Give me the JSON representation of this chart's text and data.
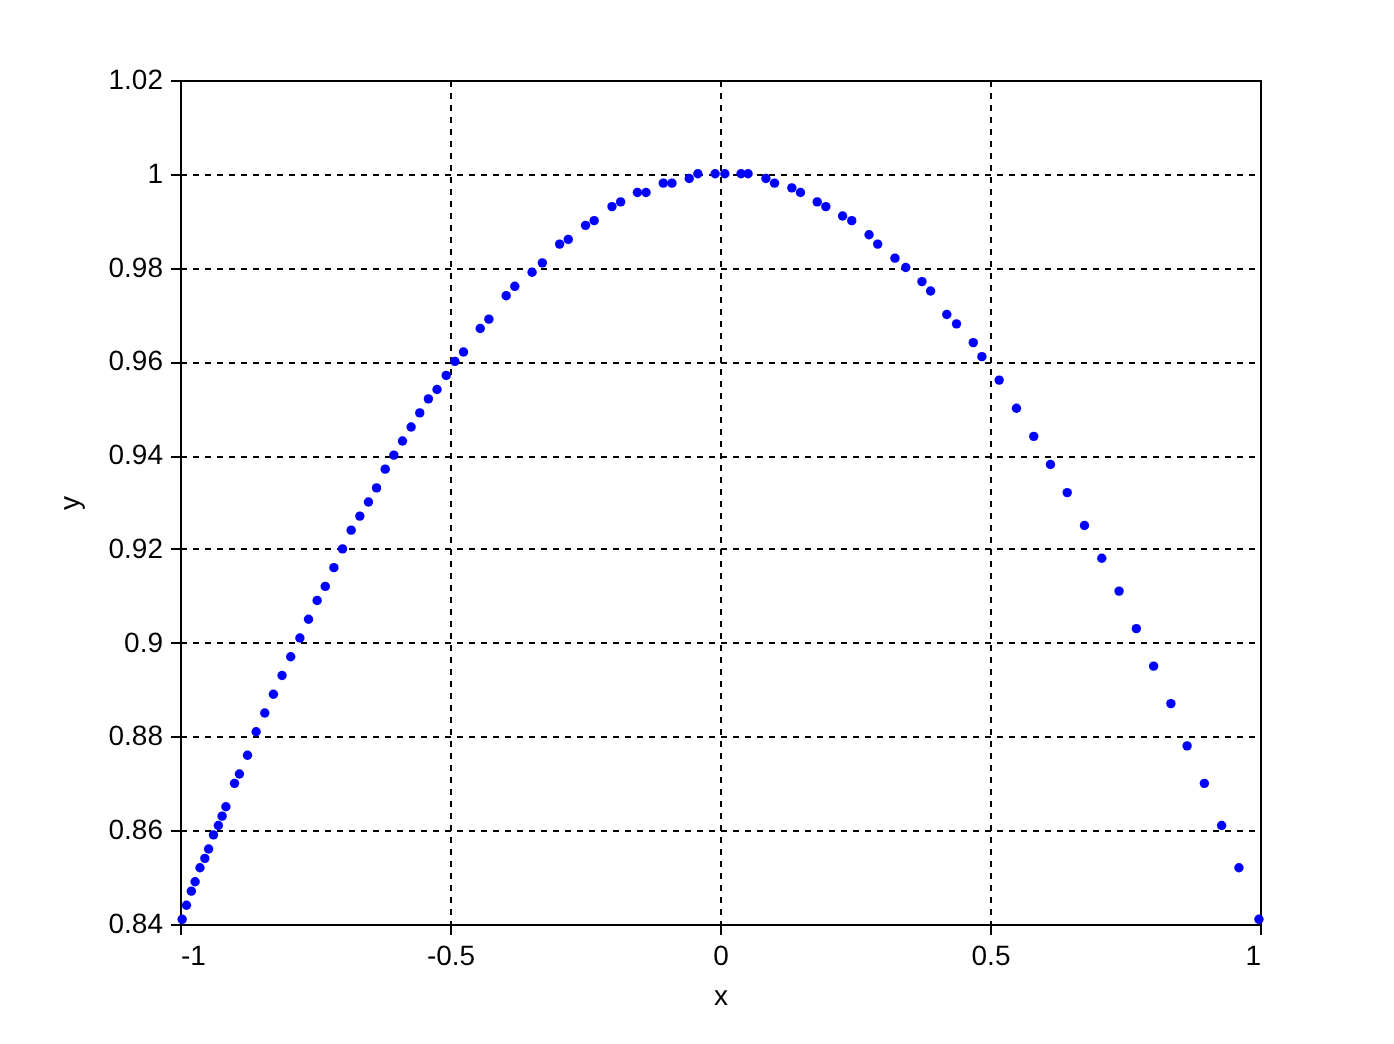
{
  "chart_data": {
    "type": "scatter",
    "xlabel": "x",
    "ylabel": "y",
    "xlim": [
      -1,
      1
    ],
    "ylim": [
      0.84,
      1.02
    ],
    "xticks": [
      -1,
      -0.5,
      0,
      0.5,
      1
    ],
    "yticks": [
      0.84,
      0.86,
      0.88,
      0.9,
      0.92,
      0.94,
      0.96,
      0.98,
      1,
      1.02
    ],
    "grid": true,
    "marker": "circle",
    "series": [
      {
        "color": "#0000ff",
        "x": [
          -0.996,
          -0.988,
          -0.979,
          -0.972,
          -0.963,
          -0.954,
          -0.947,
          -0.938,
          -0.929,
          -0.922,
          -0.915,
          -0.899,
          -0.89,
          -0.875,
          -0.859,
          -0.843,
          -0.827,
          -0.811,
          -0.795,
          -0.778,
          -0.762,
          -0.746,
          -0.731,
          -0.715,
          -0.699,
          -0.683,
          -0.667,
          -0.651,
          -0.636,
          -0.62,
          -0.604,
          -0.588,
          -0.572,
          -0.556,
          -0.54,
          -0.524,
          -0.507,
          -0.491,
          -0.475,
          -0.444,
          -0.428,
          -0.396,
          -0.38,
          -0.348,
          -0.329,
          -0.297,
          -0.281,
          -0.249,
          -0.233,
          -0.2,
          -0.184,
          -0.153,
          -0.137,
          -0.105,
          -0.089,
          -0.057,
          -0.041,
          -0.009,
          0.009,
          0.039,
          0.052,
          0.085,
          0.101,
          0.133,
          0.149,
          0.18,
          0.196,
          0.227,
          0.244,
          0.276,
          0.292,
          0.324,
          0.344,
          0.374,
          0.39,
          0.42,
          0.438,
          0.469,
          0.485,
          0.517,
          0.549,
          0.581,
          0.612,
          0.643,
          0.675,
          0.707,
          0.739,
          0.771,
          0.803,
          0.835,
          0.865,
          0.897,
          0.929,
          0.961,
          0.998
        ],
        "values": [
          0.841,
          0.844,
          0.847,
          0.849,
          0.852,
          0.854,
          0.856,
          0.859,
          0.861,
          0.863,
          0.865,
          0.87,
          0.872,
          0.876,
          0.881,
          0.885,
          0.889,
          0.893,
          0.897,
          0.901,
          0.905,
          0.909,
          0.912,
          0.916,
          0.92,
          0.924,
          0.927,
          0.93,
          0.933,
          0.937,
          0.94,
          0.943,
          0.946,
          0.949,
          0.952,
          0.954,
          0.957,
          0.96,
          0.962,
          0.967,
          0.969,
          0.974,
          0.976,
          0.979,
          0.981,
          0.985,
          0.986,
          0.989,
          0.99,
          0.993,
          0.994,
          0.996,
          0.996,
          0.998,
          0.998,
          0.999,
          1.0,
          1.0,
          1.0,
          1.0,
          1.0,
          0.999,
          0.998,
          0.997,
          0.996,
          0.994,
          0.993,
          0.991,
          0.99,
          0.987,
          0.985,
          0.982,
          0.98,
          0.977,
          0.975,
          0.97,
          0.968,
          0.964,
          0.961,
          0.956,
          0.95,
          0.944,
          0.938,
          0.932,
          0.925,
          0.918,
          0.911,
          0.903,
          0.895,
          0.887,
          0.878,
          0.87,
          0.861,
          0.852,
          0.841
        ]
      }
    ]
  }
}
